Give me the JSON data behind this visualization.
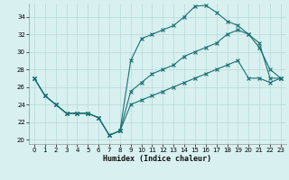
{
  "xlabel": "Humidex (Indice chaleur)",
  "background_color": "#d8f0f0",
  "grid_color": "#b8d8d8",
  "line_color": "#1a7070",
  "xlim": [
    -0.5,
    23.5
  ],
  "ylim": [
    19.5,
    35.5
  ],
  "yticks": [
    20,
    22,
    24,
    26,
    28,
    30,
    32,
    34
  ],
  "xticks": [
    0,
    1,
    2,
    3,
    4,
    5,
    6,
    7,
    8,
    9,
    10,
    11,
    12,
    13,
    14,
    15,
    16,
    17,
    18,
    19,
    20,
    21,
    22,
    23
  ],
  "line1_x": [
    0,
    1,
    2,
    3,
    4,
    5,
    6,
    7,
    8,
    9,
    10,
    11,
    12,
    13,
    14,
    15,
    16,
    17,
    18,
    19,
    20,
    21,
    22,
    23
  ],
  "line1_y": [
    27.0,
    25.0,
    24.0,
    23.0,
    23.0,
    23.0,
    22.5,
    20.5,
    21.0,
    29.0,
    31.5,
    32.0,
    32.5,
    33.0,
    34.0,
    35.2,
    35.3,
    34.5,
    33.5,
    33.0,
    32.0,
    30.5,
    28.0,
    27.0
  ],
  "line2_x": [
    0,
    1,
    2,
    3,
    4,
    5,
    6,
    7,
    8,
    9,
    10,
    11,
    12,
    13,
    14,
    15,
    16,
    17,
    18,
    19,
    20,
    21,
    22,
    23
  ],
  "line2_y": [
    27.0,
    25.0,
    24.0,
    23.0,
    23.0,
    23.0,
    22.5,
    20.5,
    21.0,
    25.5,
    26.5,
    27.5,
    28.0,
    28.5,
    29.5,
    30.0,
    30.5,
    31.0,
    32.0,
    32.5,
    32.0,
    31.0,
    27.0,
    27.0
  ],
  "line3_x": [
    0,
    1,
    2,
    3,
    4,
    5,
    6,
    7,
    8,
    9,
    10,
    11,
    12,
    13,
    14,
    15,
    16,
    17,
    18,
    19,
    20,
    21,
    22,
    23
  ],
  "line3_y": [
    27.0,
    25.0,
    24.0,
    23.0,
    23.0,
    23.0,
    22.5,
    20.5,
    21.0,
    24.0,
    24.5,
    25.0,
    25.5,
    26.0,
    26.5,
    27.0,
    27.5,
    28.0,
    28.5,
    29.0,
    27.0,
    27.0,
    26.5,
    27.0
  ]
}
